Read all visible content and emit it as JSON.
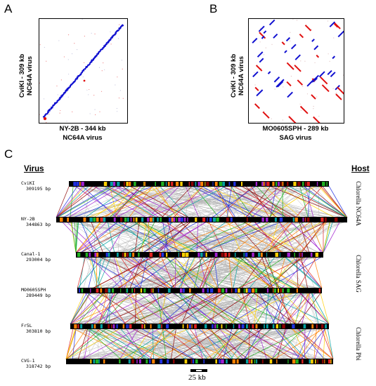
{
  "panels": {
    "a": {
      "letter": "A",
      "y_line1": "CviKI - 309 kb",
      "y_line2": "NC64A virus",
      "x_line1": "NY-2B - 344 kb",
      "x_line2": "NC64A virus"
    },
    "b": {
      "letter": "B",
      "y_line1": "CviKI - 309 kb",
      "y_line2": "NC64A virus",
      "x_line1": "MO0605SPH - 289 kb",
      "x_line2": "SAG virus"
    },
    "c": {
      "letter": "C",
      "virus_heading": "Virus",
      "host_heading": "Host",
      "genomes": [
        {
          "name": "CviKI",
          "size": "309195 bp"
        },
        {
          "name": "NY-2B",
          "size": "344863 bp"
        },
        {
          "name": "Canal-1",
          "size": "293004 bp"
        },
        {
          "name": "MO0605SPH",
          "size": "289449 bp"
        },
        {
          "name": "Fr5L",
          "size": "303810 bp"
        },
        {
          "name": "CVG-1",
          "size": "318742 bp"
        }
      ],
      "hosts": [
        "Chlorella NC64A",
        "Chlorella SAG",
        "Chlorella Pbi"
      ],
      "scale_bar": "25 kb"
    }
  },
  "colors": {
    "forward_match": "#1010d0",
    "reverse_match": "#e01010",
    "background_link": "#b8b8b8",
    "chromosome": "#000000",
    "palette": [
      "#e02020",
      "#2030e0",
      "#20b020",
      "#a020d0",
      "#ff8000",
      "#ffd000",
      "#8b0000",
      "#00a0a0"
    ]
  }
}
